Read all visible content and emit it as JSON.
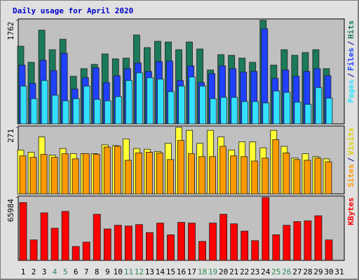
{
  "chart_data": [
    {
      "type": "bar",
      "title": "Daily usage for April 2020",
      "categories": [
        "1",
        "2",
        "3",
        "4",
        "5",
        "6",
        "7",
        "8",
        "9",
        "10",
        "11",
        "12",
        "13",
        "14",
        "15",
        "16",
        "17",
        "18",
        "19",
        "20",
        "21",
        "22",
        "23",
        "24",
        "25",
        "26",
        "27",
        "28",
        "29",
        "30",
        "31"
      ],
      "category_colors": [
        "#000000",
        "#000000",
        "#000000",
        "#2e8b57",
        "#2e8b57",
        "#000000",
        "#000000",
        "#000000",
        "#000000",
        "#000000",
        "#2e8b57",
        "#2e8b57",
        "#000000",
        "#000000",
        "#000000",
        "#000000",
        "#000000",
        "#2e8b57",
        "#2e8b57",
        "#000000",
        "#000000",
        "#000000",
        "#000000",
        "#000000",
        "#2e8b57",
        "#2e8b57",
        "#000000",
        "#000000",
        "#000000",
        "#000000",
        "#000000"
      ],
      "ylim": [
        0,
        1762
      ],
      "yticks": [
        1762
      ],
      "series": [
        {
          "name": "Hits",
          "color": "#1b7a5a",
          "values": [
            1321,
            1048,
            1595,
            1262,
            1440,
            810,
            940,
            1012,
            1190,
            1107,
            1119,
            1512,
            1298,
            1405,
            1393,
            1262,
            1393,
            1274,
            917,
            1178,
            1167,
            1119,
            1048,
            1762,
            1000,
            1262,
            1167,
            1214,
            1262,
            940,
            null
          ]
        },
        {
          "name": "Files",
          "color": "#2040ff",
          "values": [
            1000,
            690,
            1083,
            905,
            1202,
            595,
            786,
            952,
            702,
            821,
            940,
            1036,
            893,
            1060,
            1071,
            738,
            988,
            702,
            857,
            988,
            940,
            881,
            893,
            1619,
            774,
            917,
            810,
            893,
            940,
            821,
            null
          ]
        },
        {
          "name": "Pages",
          "color": "#33e0ff",
          "values": [
            643,
            429,
            738,
            488,
            393,
            429,
            643,
            417,
            393,
            464,
            738,
            869,
            786,
            762,
            548,
            643,
            798,
            643,
            429,
            452,
            452,
            381,
            381,
            357,
            560,
            536,
            369,
            333,
            619,
            440,
            null
          ]
        }
      ]
    },
    {
      "type": "bar",
      "ylim": [
        0,
        271
      ],
      "yticks": [
        271
      ],
      "series": [
        {
          "name": "Visits",
          "color": "#ffff33",
          "values": [
            179,
            170,
            232,
            158,
            185,
            164,
            164,
            164,
            200,
            197,
            224,
            185,
            182,
            173,
            206,
            271,
            259,
            206,
            259,
            232,
            179,
            212,
            212,
            188,
            259,
            194,
            146,
            164,
            152,
            143,
            null
          ]
        },
        {
          "name": "Sites",
          "color": "#ff9900",
          "values": [
            155,
            149,
            161,
            149,
            164,
            143,
            164,
            161,
            191,
            194,
            137,
            167,
            170,
            167,
            140,
            218,
            164,
            152,
            152,
            194,
            155,
            152,
            134,
            146,
            221,
            167,
            140,
            137,
            146,
            131,
            null
          ]
        }
      ]
    },
    {
      "type": "bar",
      "ylim": [
        0,
        65984
      ],
      "yticks": [
        65984
      ],
      "series": [
        {
          "name": "KBytes",
          "color": "#ff0000",
          "values": [
            60593,
            21476,
            49855,
            33748,
            51389,
            14573,
            19175,
            48321,
            32981,
            36816,
            36049,
            37583,
            29146,
            39117,
            26845,
            39884,
            39117,
            19942,
            39117,
            48321,
            38350,
            30680,
            20709,
            65984,
            26845,
            36816,
            40651,
            41418,
            46787,
            21476,
            null
          ]
        }
      ]
    }
  ],
  "legend_separator": "/"
}
